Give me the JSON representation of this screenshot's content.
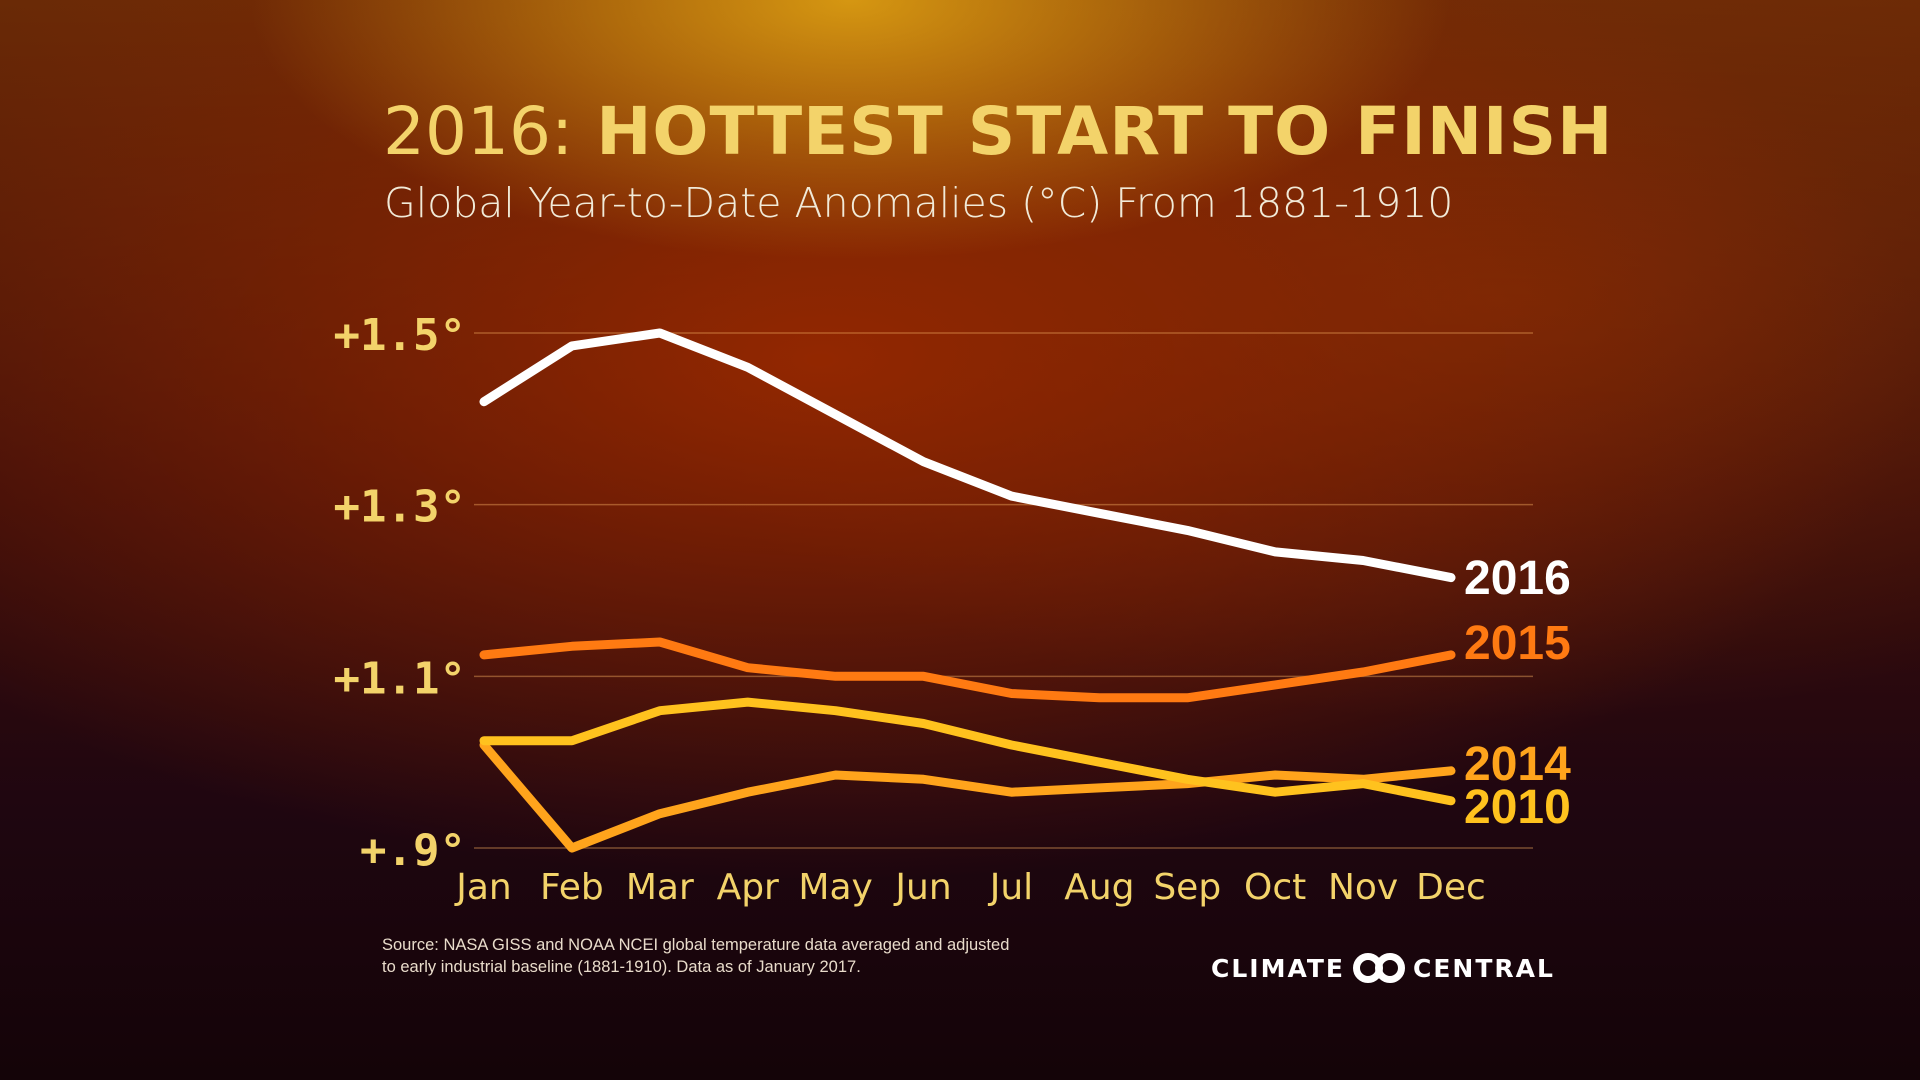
{
  "title": {
    "year": "2016:",
    "headline": "HOTTEST START TO FINISH"
  },
  "subtitle": "Global Year-to-Date Anomalies (°C) From 1881-1910",
  "source": "Source: NASA GISS and NOAA NCEI global temperature data averaged and adjusted to early industrial baseline (1881-1910). Data as of January 2017.",
  "logo": {
    "left": "CLIMATE",
    "right": "CENTRAL"
  },
  "chart_data": {
    "type": "line",
    "title": "2016: HOTTEST START TO FINISH",
    "subtitle": "Global Year-to-Date Anomalies (°C) From 1881-1910",
    "categories": [
      "Jan",
      "Feb",
      "Mar",
      "Apr",
      "May",
      "Jun",
      "Jul",
      "Aug",
      "Sep",
      "Oct",
      "Nov",
      "Dec"
    ],
    "yticks": [
      {
        "value": 1.5,
        "label": "+1.5°"
      },
      {
        "value": 1.3,
        "label": "+1.3°"
      },
      {
        "value": 1.1,
        "label": "+1.1°"
      },
      {
        "value": 0.9,
        "label": "+.9°"
      }
    ],
    "ylim": [
      0.9,
      1.5
    ],
    "grid": true,
    "legend": "inline labels at line ends",
    "series": [
      {
        "name": "2016",
        "color": "#ffffff",
        "values": [
          1.42,
          1.485,
          1.5,
          1.46,
          1.405,
          1.35,
          1.31,
          1.29,
          1.27,
          1.245,
          1.235,
          1.215
        ]
      },
      {
        "name": "2015",
        "color": "#ff7a12",
        "values": [
          1.125,
          1.135,
          1.14,
          1.11,
          1.1,
          1.1,
          1.08,
          1.075,
          1.075,
          1.09,
          1.105,
          1.125
        ]
      },
      {
        "name": "2014",
        "color": "#ffa41c",
        "values": [
          1.02,
          0.9,
          0.94,
          0.965,
          0.985,
          0.98,
          0.965,
          0.97,
          0.975,
          0.985,
          0.98,
          0.99
        ]
      },
      {
        "name": "2010",
        "color": "#ffc21e",
        "values": [
          1.025,
          1.025,
          1.06,
          1.07,
          1.06,
          1.045,
          1.02,
          1.0,
          0.98,
          0.965,
          0.975,
          0.955
        ]
      }
    ]
  }
}
